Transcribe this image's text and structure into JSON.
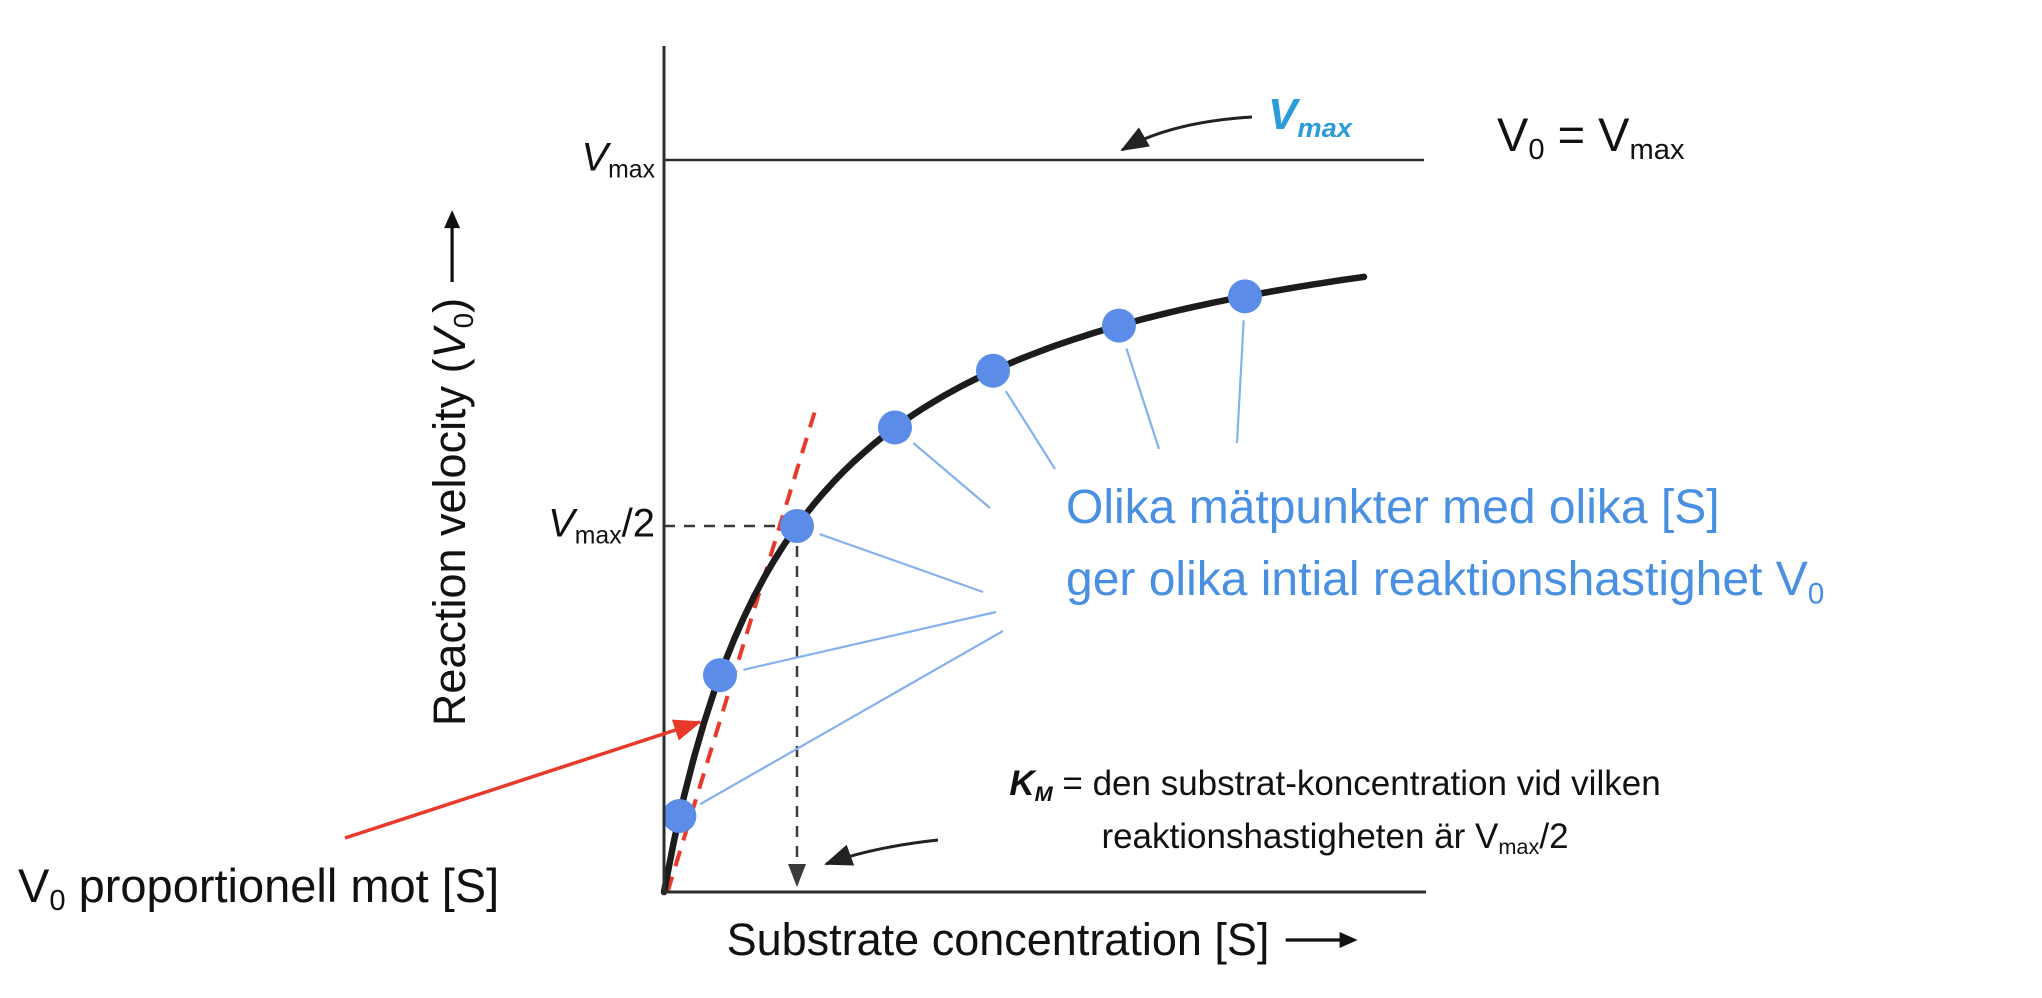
{
  "chart_data": {
    "type": "line",
    "subtype": "michaelis-menten-saturation-curve",
    "xlabel": "Substrate concentration [S]",
    "ylabel": "Reaction velocity (V0)",
    "y_ticks": [
      "Vmax",
      "Vmax/2"
    ],
    "x_axis_normalized_range": [
      0,
      1
    ],
    "vmax_level": 1.0,
    "half_vmax_level": 0.5,
    "km": 0.19,
    "data_points_x": [
      0.022,
      0.08,
      0.19,
      0.33,
      0.47,
      0.65,
      0.83
    ],
    "data_points_y": [
      0.1,
      0.3,
      0.5,
      0.63,
      0.71,
      0.77,
      0.81
    ],
    "tangent_line": {
      "x0": 0.005,
      "y0": 0.0,
      "x1": 0.215,
      "y1": 0.655
    },
    "gridlines": false,
    "annotations": [
      {
        "text": "Vmax",
        "style": "blue italic",
        "points_to": "Vmax asymptote line"
      },
      {
        "text": "V0 = Vmax",
        "position": "top right"
      },
      {
        "text": "Olika mätpunkter med olika [S] ger olika intial reaktionshastighet V0",
        "style": "blue",
        "points_to": "data points"
      },
      {
        "text": "KM = den substrat-koncentration vid vilken reaktionshastigheten är Vmax/2",
        "points_to": "x position where velocity is Vmax/2"
      },
      {
        "text": "V0 proportionell mot [S]",
        "points_to": "initial linear region of curve",
        "arrow": "red"
      }
    ]
  },
  "labels": {
    "y_axis": {
      "prefix": "Reaction velocity (",
      "sym": "V",
      "sub": "0",
      "suffix": ")"
    },
    "x_axis": {
      "text": "Substrate concentration [S]"
    },
    "vmax_tick": {
      "sym": "V",
      "sub": "max"
    },
    "vmax_half_tick": {
      "sym": "V",
      "sub": "max",
      "suffix": "/2"
    },
    "vmax_callout": {
      "sym": "V",
      "sub": "max"
    },
    "v0_eq_vmax": {
      "sym1": "V",
      "sub1": "0",
      "mid": " = ",
      "sym2": "V",
      "sub2": "max"
    },
    "blue_note_line1": "Olika mätpunkter med olika [S]",
    "blue_note_line2": {
      "text": "ger olika intial reaktionshastighet V",
      "sub": "0"
    },
    "km_note_line1": {
      "sym": "K",
      "sub": "M",
      "text": " = den substrat-koncentration vid vilken"
    },
    "km_note_line2": {
      "prefix": "reaktionshastigheten är V",
      "sub": "max",
      "suffix": "/2"
    },
    "v0_proportional": {
      "sym": "V",
      "sub": "0",
      "text": " proportionell mot [S]"
    }
  },
  "colors": {
    "curve": "#1c1c1c",
    "axis": "#2e2e2e",
    "dashed": "#3a3a3a",
    "dots": "#5b8de8",
    "connector_lines": "#85b1ec",
    "blue_text": "#4a90e2",
    "vmax_callout": "#2b9cd8",
    "tangent_red": "#e8392a",
    "arrow_red": "#e8392a",
    "black_arrow": "#222222"
  }
}
